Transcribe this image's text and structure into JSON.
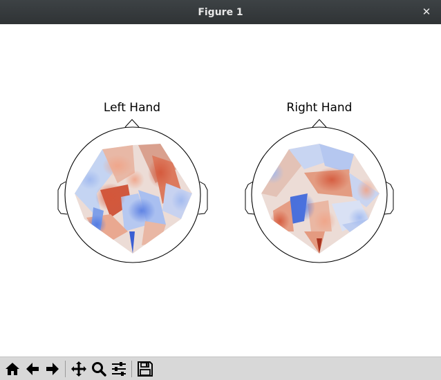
{
  "window": {
    "title": "Figure 1",
    "close_glyph": "✕"
  },
  "figure": {
    "plots": [
      {
        "title": "Left Hand"
      },
      {
        "title": "Right Hand"
      }
    ],
    "colormap": {
      "low": "#3b5fd6",
      "mid": "#eeeeee",
      "high": "#c8533c"
    }
  },
  "toolbar": {
    "buttons": [
      {
        "name": "home-icon"
      },
      {
        "name": "back-icon"
      },
      {
        "name": "forward-icon"
      },
      {
        "name": "pan-icon"
      },
      {
        "name": "zoom-icon"
      },
      {
        "name": "configure-subplots-icon"
      },
      {
        "name": "save-icon"
      }
    ]
  }
}
